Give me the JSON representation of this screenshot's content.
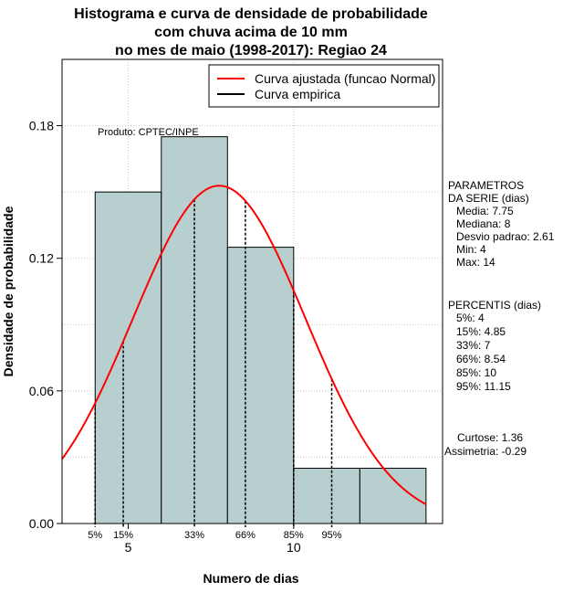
{
  "chart_data": {
    "type": "histogram",
    "title_lines": [
      "Histograma e curva de densidade de probabilidade",
      "com chuva acima de 10 mm",
      "no mes de maio (1998-2017): Regiao 24"
    ],
    "xlabel": "Numero de dias",
    "ylabel": "Densidade de probabilidade",
    "xlim": [
      3,
      14.5
    ],
    "ylim": [
      0,
      0.21
    ],
    "x_ticks": [
      5,
      10
    ],
    "y_ticks": [
      0.0,
      0.06,
      0.12,
      0.18
    ],
    "y_tick_labels": [
      "0.00",
      "0.06",
      "0.12",
      "0.18"
    ],
    "bins": [
      {
        "x0": 4,
        "x1": 6,
        "density": 0.15
      },
      {
        "x0": 6,
        "x1": 8,
        "density": 0.175
      },
      {
        "x0": 8,
        "x1": 10,
        "density": 0.125
      },
      {
        "x0": 10,
        "x1": 12,
        "density": 0.025
      },
      {
        "x0": 12,
        "x1": 14,
        "density": 0.025
      }
    ],
    "bar_color": "#b7cfcf",
    "normal_fit": {
      "mean": 7.75,
      "sd": 2.61,
      "color": "#ff0000"
    },
    "percentile_lines": [
      {
        "label": "5%",
        "x": 4
      },
      {
        "label": "15%",
        "x": 4.85
      },
      {
        "label": "33%",
        "x": 7
      },
      {
        "label": "66%",
        "x": 8.54
      },
      {
        "label": "85%",
        "x": 10
      },
      {
        "label": "95%",
        "x": 11.15
      }
    ],
    "legend": [
      {
        "label": "Curva ajustada (funcao Normal)",
        "color": "#ff0000"
      },
      {
        "label": "Curva empirica",
        "color": "#000000"
      }
    ],
    "product_label": "Produto: CPTEC/INPE",
    "parametros": {
      "heading_lines": [
        "PARAMETROS",
        "DA SERIE (dias)"
      ],
      "items": [
        "Media: 7.75",
        "Mediana: 8",
        "Desvio padrao: 2.61",
        "Min: 4",
        "Max: 14"
      ]
    },
    "percentis": {
      "heading": "PERCENTIS (dias)",
      "items": [
        "5%: 4",
        "15%: 4.85",
        "33%: 7",
        "66%: 8.54",
        "85%: 10",
        "95%: 11.15"
      ]
    },
    "stats": [
      "Curtose: 1.36",
      "Assimetria: -0.29"
    ]
  }
}
